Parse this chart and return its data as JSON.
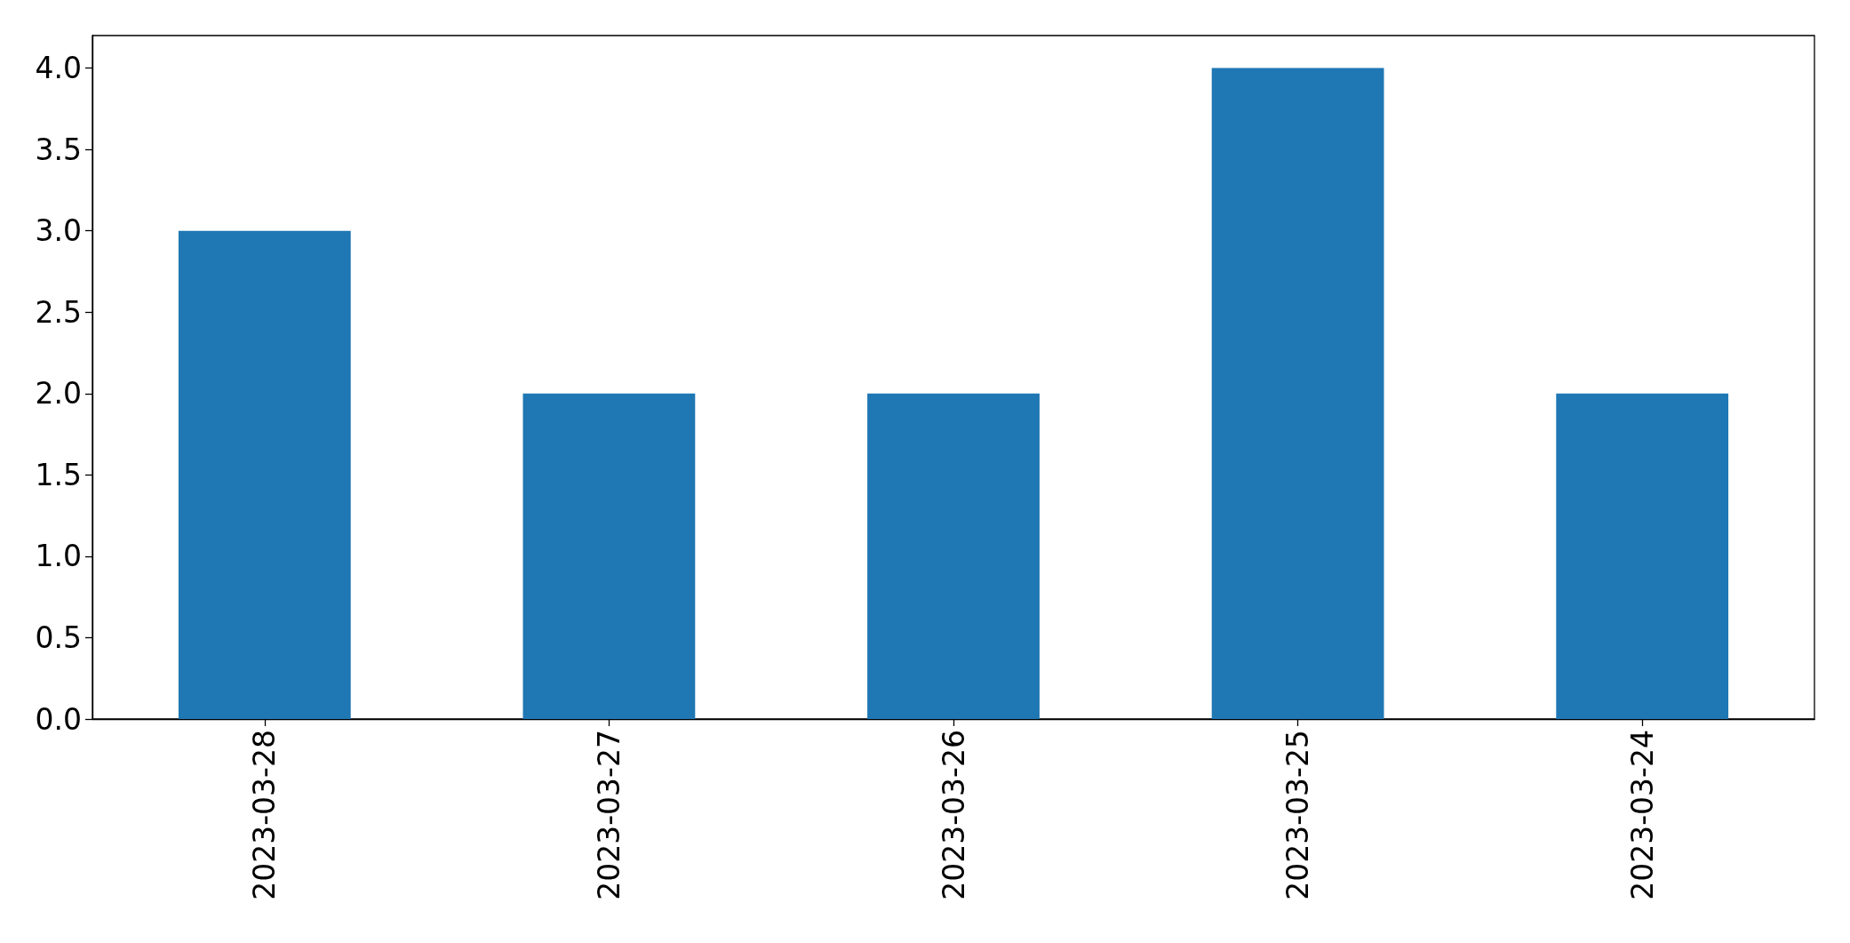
{
  "chart_data": {
    "type": "bar",
    "categories": [
      "2023-03-28",
      "2023-03-27",
      "2023-03-26",
      "2023-03-25",
      "2023-03-24"
    ],
    "values": [
      3,
      2,
      2,
      4,
      2
    ],
    "color": "#1f77b4",
    "ylim": [
      0,
      4.2
    ],
    "yticks": [
      {
        "value": 0,
        "label": "0.0"
      },
      {
        "value": 0.5,
        "label": "0.5"
      },
      {
        "value": 1,
        "label": "1.0"
      },
      {
        "value": 1.5,
        "label": "1.5"
      },
      {
        "value": 2,
        "label": "2.0"
      },
      {
        "value": 2.5,
        "label": "2.5"
      },
      {
        "value": 3,
        "label": "3.0"
      },
      {
        "value": 3.5,
        "label": "3.5"
      },
      {
        "value": 4,
        "label": "4.0"
      }
    ],
    "grid": false
  }
}
